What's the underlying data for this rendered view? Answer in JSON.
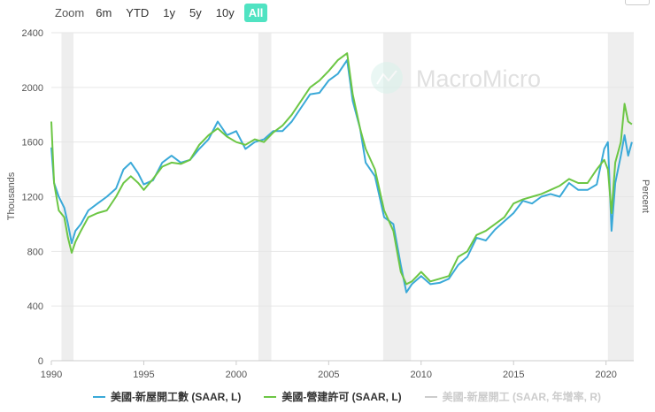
{
  "zoom": {
    "label": "Zoom",
    "buttons": [
      "6m",
      "YTD",
      "1y",
      "5y",
      "10y",
      "All"
    ],
    "active": "All"
  },
  "watermark": "MacroMicro",
  "colors": {
    "starts": "#3aa9d8",
    "permits": "#6cc644",
    "hidden": "#cccccc",
    "recession": "#eeeeee",
    "grid": "#e6e6e6",
    "accent": "#50e3c2"
  },
  "legend": [
    {
      "label": "美國-新屋開工數 (SAAR, L)",
      "color": "#3aa9d8",
      "visible": true
    },
    {
      "label": "美國-營建許可 (SAAR, L)",
      "color": "#6cc644",
      "visible": true
    },
    {
      "label": "美國-新屋開工 (SAAR, 年增率, R)",
      "color": "#cccccc",
      "visible": false
    }
  ],
  "chart_data": {
    "type": "line",
    "ylabel": "Thousands",
    "ylabel_right": "Percent",
    "xlim": [
      1990,
      2021.5
    ],
    "ylim": [
      0,
      2400
    ],
    "yticks": [
      0,
      400,
      800,
      1200,
      1600,
      2000,
      2400
    ],
    "xticks": [
      1990,
      1995,
      2000,
      2005,
      2010,
      2015,
      2020
    ],
    "recessions": [
      [
        1990.55,
        1991.2
      ],
      [
        2001.2,
        2001.9
      ],
      [
        2007.95,
        2009.45
      ],
      [
        2020.1,
        2021.5
      ]
    ],
    "series": [
      {
        "name": "美國-新屋開工數 (SAAR, L)",
        "points": [
          [
            1990.0,
            1560
          ],
          [
            1990.15,
            1300
          ],
          [
            1990.4,
            1200
          ],
          [
            1990.7,
            1120
          ],
          [
            1990.9,
            1000
          ],
          [
            1991.1,
            860
          ],
          [
            1991.3,
            950
          ],
          [
            1991.6,
            1000
          ],
          [
            1992.0,
            1100
          ],
          [
            1992.5,
            1150
          ],
          [
            1993.0,
            1200
          ],
          [
            1993.5,
            1260
          ],
          [
            1993.9,
            1400
          ],
          [
            1994.3,
            1450
          ],
          [
            1994.7,
            1370
          ],
          [
            1995.0,
            1290
          ],
          [
            1995.5,
            1320
          ],
          [
            1996.0,
            1450
          ],
          [
            1996.5,
            1500
          ],
          [
            1997.0,
            1450
          ],
          [
            1997.5,
            1470
          ],
          [
            1998.0,
            1550
          ],
          [
            1998.5,
            1620
          ],
          [
            1999.0,
            1750
          ],
          [
            1999.5,
            1650
          ],
          [
            2000.0,
            1680
          ],
          [
            2000.5,
            1550
          ],
          [
            2001.0,
            1600
          ],
          [
            2001.5,
            1620
          ],
          [
            2002.0,
            1680
          ],
          [
            2002.5,
            1680
          ],
          [
            2003.0,
            1750
          ],
          [
            2003.5,
            1850
          ],
          [
            2004.0,
            1950
          ],
          [
            2004.5,
            1960
          ],
          [
            2005.0,
            2050
          ],
          [
            2005.5,
            2100
          ],
          [
            2006.0,
            2200
          ],
          [
            2006.3,
            1900
          ],
          [
            2006.7,
            1700
          ],
          [
            2007.0,
            1450
          ],
          [
            2007.5,
            1350
          ],
          [
            2008.0,
            1050
          ],
          [
            2008.5,
            1000
          ],
          [
            2008.9,
            700
          ],
          [
            2009.2,
            500
          ],
          [
            2009.5,
            560
          ],
          [
            2010.0,
            620
          ],
          [
            2010.5,
            560
          ],
          [
            2011.0,
            570
          ],
          [
            2011.5,
            600
          ],
          [
            2012.0,
            700
          ],
          [
            2012.5,
            760
          ],
          [
            2013.0,
            900
          ],
          [
            2013.5,
            880
          ],
          [
            2014.0,
            960
          ],
          [
            2014.5,
            1020
          ],
          [
            2015.0,
            1080
          ],
          [
            2015.5,
            1170
          ],
          [
            2016.0,
            1150
          ],
          [
            2016.5,
            1200
          ],
          [
            2017.0,
            1220
          ],
          [
            2017.5,
            1200
          ],
          [
            2018.0,
            1300
          ],
          [
            2018.5,
            1250
          ],
          [
            2019.0,
            1250
          ],
          [
            2019.5,
            1290
          ],
          [
            2019.9,
            1550
          ],
          [
            2020.1,
            1600
          ],
          [
            2020.3,
            950
          ],
          [
            2020.5,
            1300
          ],
          [
            2020.8,
            1500
          ],
          [
            2021.0,
            1650
          ],
          [
            2021.2,
            1500
          ],
          [
            2021.4,
            1600
          ]
        ]
      },
      {
        "name": "美國-營建許可 (SAAR, L)",
        "points": [
          [
            1990.0,
            1750
          ],
          [
            1990.15,
            1300
          ],
          [
            1990.4,
            1100
          ],
          [
            1990.7,
            1050
          ],
          [
            1990.9,
            900
          ],
          [
            1991.1,
            790
          ],
          [
            1991.3,
            870
          ],
          [
            1991.6,
            950
          ],
          [
            1992.0,
            1050
          ],
          [
            1992.5,
            1080
          ],
          [
            1993.0,
            1100
          ],
          [
            1993.5,
            1200
          ],
          [
            1993.9,
            1300
          ],
          [
            1994.3,
            1350
          ],
          [
            1994.7,
            1300
          ],
          [
            1995.0,
            1250
          ],
          [
            1995.5,
            1330
          ],
          [
            1996.0,
            1420
          ],
          [
            1996.5,
            1450
          ],
          [
            1997.0,
            1440
          ],
          [
            1997.5,
            1470
          ],
          [
            1998.0,
            1580
          ],
          [
            1998.5,
            1650
          ],
          [
            1999.0,
            1700
          ],
          [
            1999.5,
            1640
          ],
          [
            2000.0,
            1600
          ],
          [
            2000.5,
            1580
          ],
          [
            2001.0,
            1620
          ],
          [
            2001.5,
            1600
          ],
          [
            2002.0,
            1670
          ],
          [
            2002.5,
            1720
          ],
          [
            2003.0,
            1800
          ],
          [
            2003.5,
            1900
          ],
          [
            2004.0,
            2000
          ],
          [
            2004.5,
            2050
          ],
          [
            2005.0,
            2120
          ],
          [
            2005.5,
            2200
          ],
          [
            2006.0,
            2250
          ],
          [
            2006.3,
            1950
          ],
          [
            2006.7,
            1700
          ],
          [
            2007.0,
            1550
          ],
          [
            2007.5,
            1400
          ],
          [
            2008.0,
            1100
          ],
          [
            2008.5,
            950
          ],
          [
            2008.9,
            650
          ],
          [
            2009.2,
            560
          ],
          [
            2009.5,
            580
          ],
          [
            2010.0,
            650
          ],
          [
            2010.5,
            580
          ],
          [
            2011.0,
            600
          ],
          [
            2011.5,
            620
          ],
          [
            2012.0,
            760
          ],
          [
            2012.5,
            800
          ],
          [
            2013.0,
            920
          ],
          [
            2013.5,
            950
          ],
          [
            2014.0,
            1000
          ],
          [
            2014.5,
            1050
          ],
          [
            2015.0,
            1150
          ],
          [
            2015.5,
            1180
          ],
          [
            2016.0,
            1200
          ],
          [
            2016.5,
            1220
          ],
          [
            2017.0,
            1250
          ],
          [
            2017.5,
            1280
          ],
          [
            2018.0,
            1330
          ],
          [
            2018.5,
            1300
          ],
          [
            2019.0,
            1300
          ],
          [
            2019.5,
            1400
          ],
          [
            2019.9,
            1470
          ],
          [
            2020.1,
            1400
          ],
          [
            2020.3,
            1080
          ],
          [
            2020.5,
            1450
          ],
          [
            2020.8,
            1600
          ],
          [
            2021.0,
            1880
          ],
          [
            2021.2,
            1750
          ],
          [
            2021.4,
            1730
          ]
        ]
      }
    ]
  }
}
